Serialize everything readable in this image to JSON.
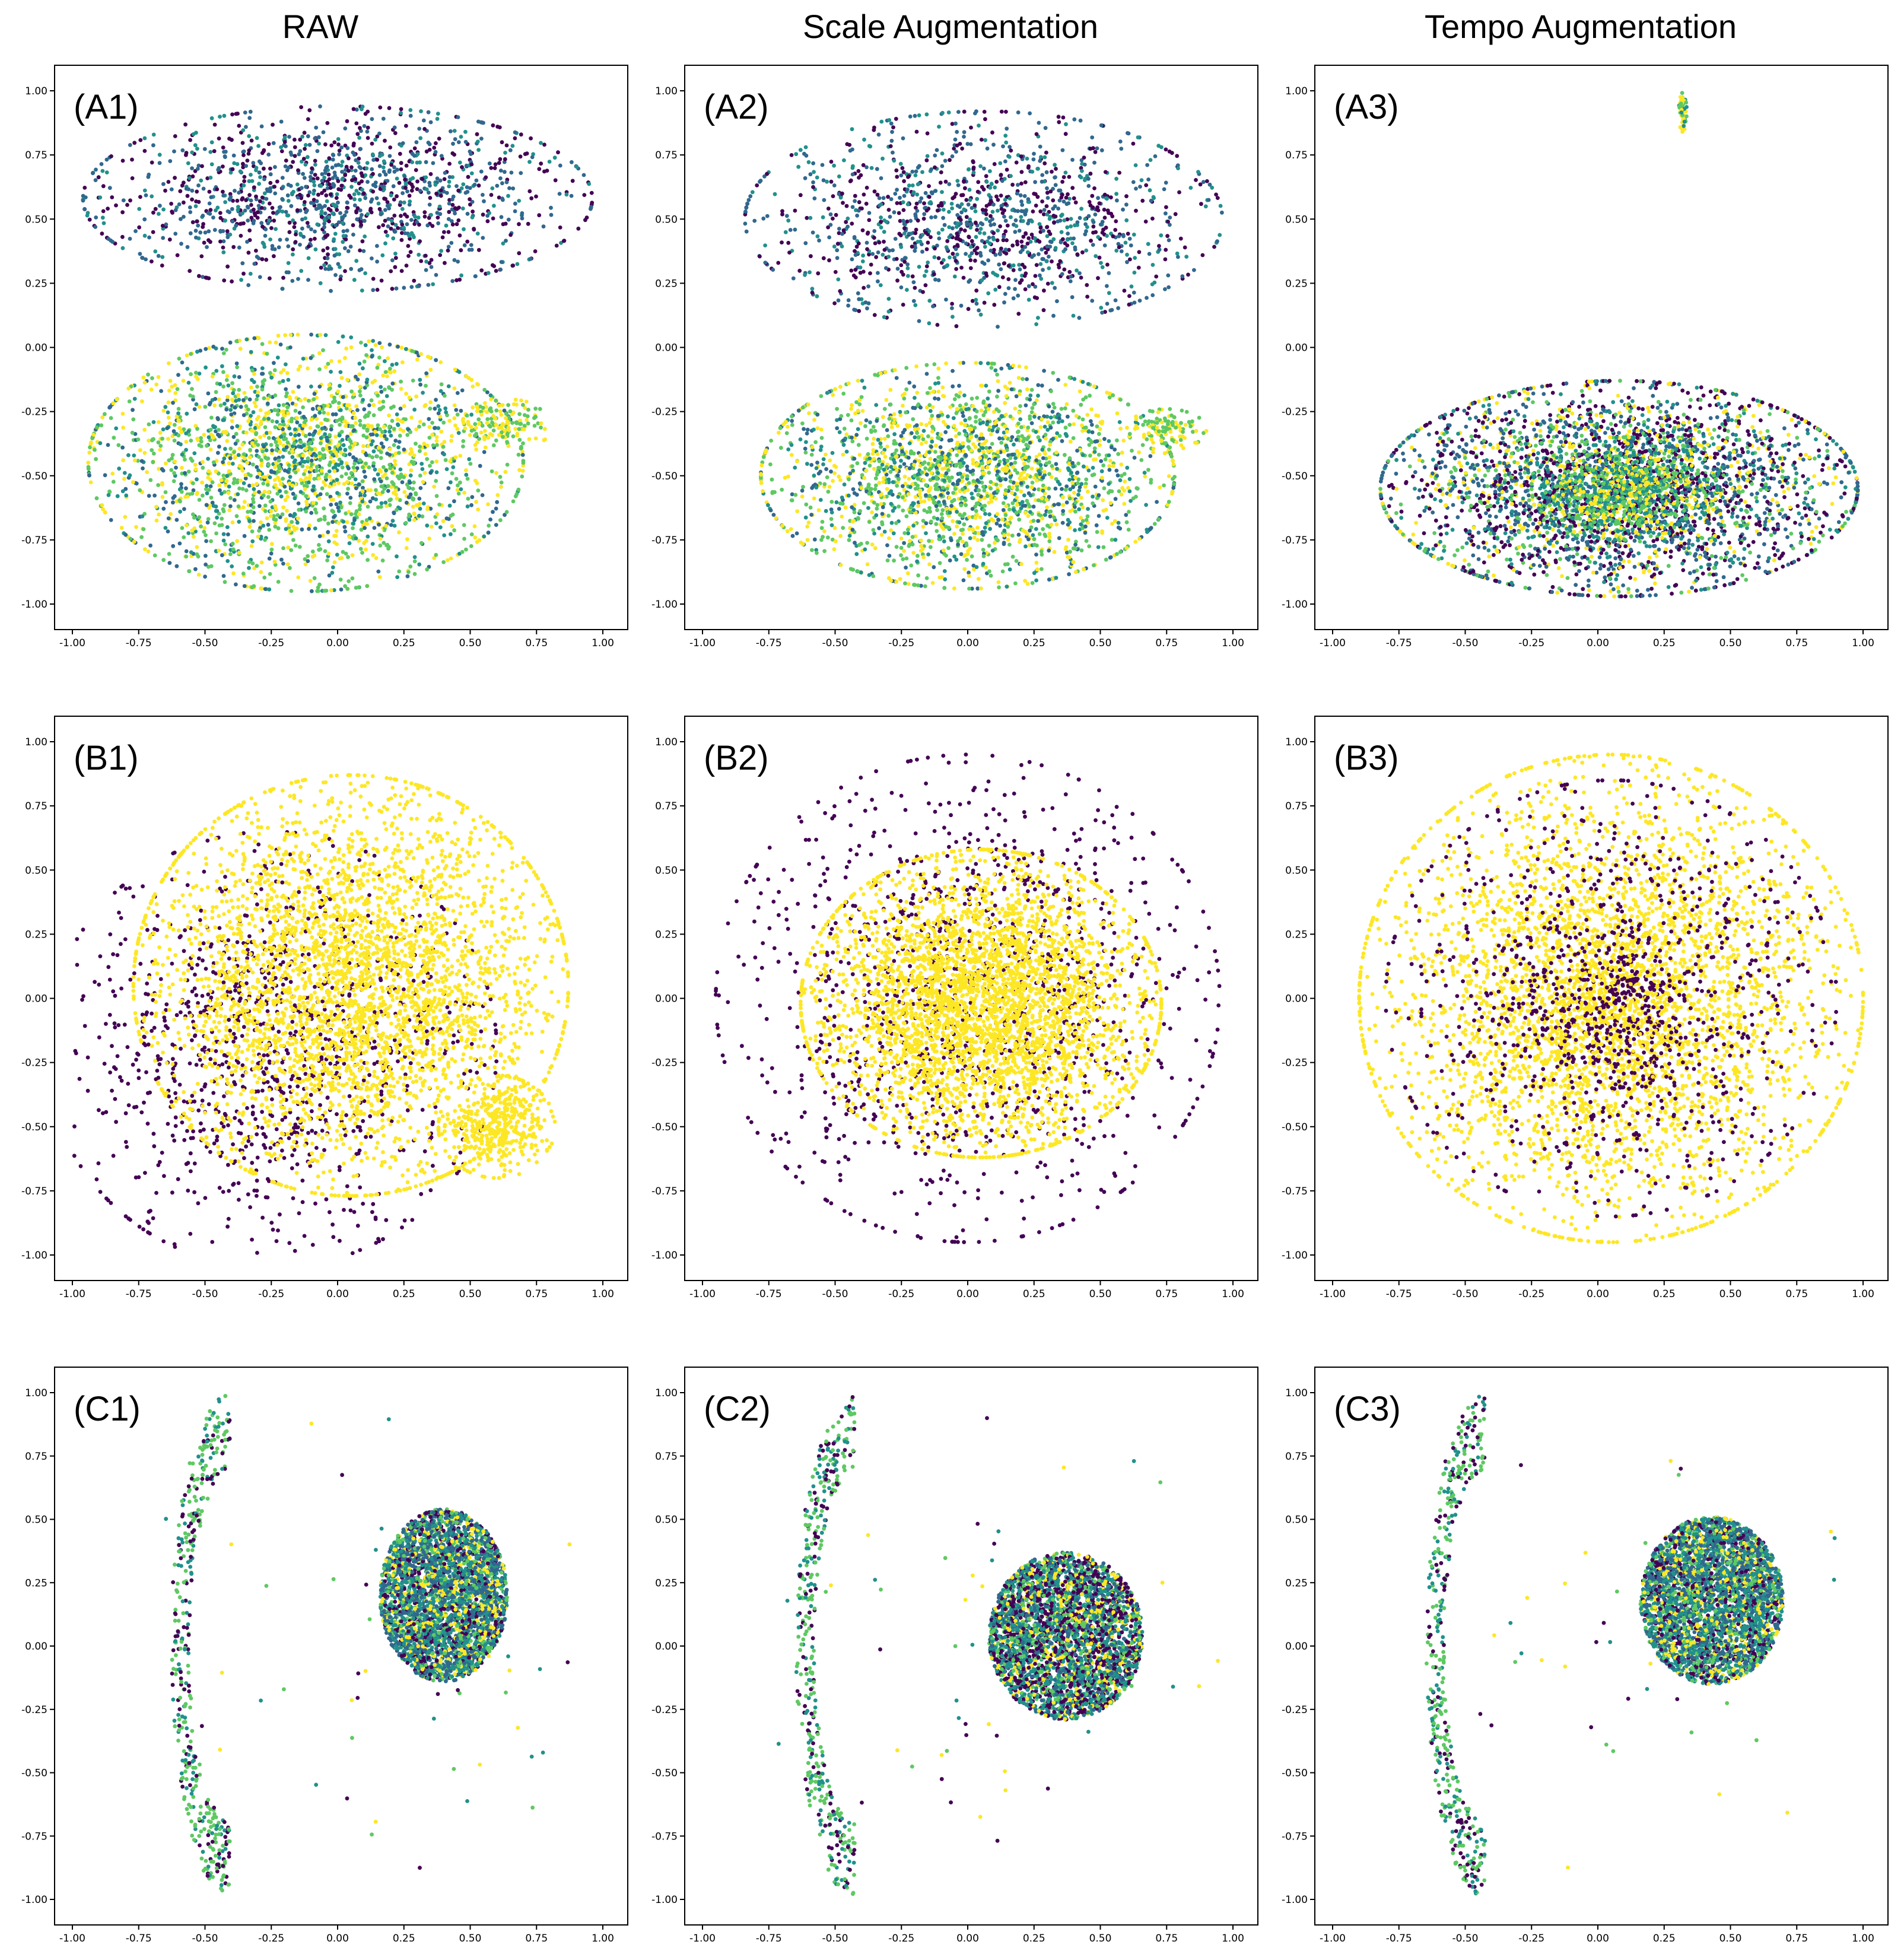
{
  "column_titles": [
    "RAW",
    "Scale Augmentation",
    "Tempo Augmentation"
  ],
  "colors": {
    "viridis": [
      "#440154",
      "#31688e",
      "#21918c",
      "#5ec962",
      "#fde725"
    ],
    "binary": [
      "#440154",
      "#fde725"
    ]
  },
  "chart_data": [
    {
      "type": "scatter",
      "label": "(A1)",
      "xlim": [
        -1,
        1
      ],
      "ylim": [
        -1,
        1
      ],
      "grid": false,
      "xticks": [
        "-1.00",
        "-0.75",
        "-0.50",
        "-0.25",
        "0.00",
        "0.25",
        "0.50",
        "0.75",
        "1.00"
      ],
      "yticks": [
        "1.00",
        "0.75",
        "0.50",
        "0.25",
        "0.00",
        "-0.25",
        "-0.50",
        "-0.75",
        "-1.00"
      ],
      "palette": "viridis",
      "clusters": [
        {
          "cx": 0.0,
          "cy": 0.58,
          "rx": 0.96,
          "ry": 0.36,
          "n": 1400,
          "c": [
            0,
            1,
            0,
            2,
            1
          ],
          "seed": 11
        },
        {
          "cx": -0.12,
          "cy": -0.45,
          "rx": 0.82,
          "ry": 0.5,
          "n": 2300,
          "c": [
            4,
            3,
            2,
            3,
            4,
            1
          ],
          "seed": 12
        },
        {
          "cx": 0.62,
          "cy": -0.3,
          "rx": 0.2,
          "ry": 0.1,
          "n": 140,
          "c": [
            4,
            3
          ],
          "seed": 13
        }
      ]
    },
    {
      "type": "scatter",
      "label": "(A2)",
      "xlim": [
        -1,
        1
      ],
      "ylim": [
        -1,
        1
      ],
      "grid": false,
      "xticks": [
        "-1.00",
        "-0.75",
        "-0.50",
        "-0.25",
        "0.00",
        "0.25",
        "0.50",
        "0.75",
        "1.00"
      ],
      "yticks": [
        "1.00",
        "0.75",
        "0.50",
        "0.25",
        "0.00",
        "-0.25",
        "-0.50",
        "-0.75",
        "-1.00"
      ],
      "palette": "viridis",
      "clusters": [
        {
          "cx": 0.06,
          "cy": 0.5,
          "rx": 0.9,
          "ry": 0.42,
          "n": 1300,
          "c": [
            0,
            1,
            0,
            2,
            1
          ],
          "seed": 21
        },
        {
          "cx": 0.0,
          "cy": -0.5,
          "rx": 0.78,
          "ry": 0.44,
          "n": 2200,
          "c": [
            4,
            3,
            2,
            3,
            4,
            1
          ],
          "seed": 22
        },
        {
          "cx": 0.75,
          "cy": -0.32,
          "rx": 0.15,
          "ry": 0.08,
          "n": 120,
          "c": [
            4,
            3
          ],
          "seed": 23
        }
      ]
    },
    {
      "type": "scatter",
      "label": "(A3)",
      "xlim": [
        -1,
        1
      ],
      "ylim": [
        -1,
        1
      ],
      "grid": false,
      "xticks": [
        "-1.00",
        "-0.75",
        "-0.50",
        "-0.25",
        "0.00",
        "0.25",
        "0.50",
        "0.75",
        "1.00"
      ],
      "yticks": [
        "1.00",
        "0.75",
        "0.50",
        "0.25",
        "0.00",
        "-0.25",
        "-0.50",
        "-0.75",
        "-1.00"
      ],
      "palette": "viridis",
      "clusters": [
        {
          "cx": 0.08,
          "cy": -0.55,
          "rx": 0.9,
          "ry": 0.42,
          "n": 3400,
          "c": [
            0,
            1,
            2,
            3,
            4,
            0,
            1
          ],
          "seed": 31
        },
        {
          "cx": 0.1,
          "cy": -0.55,
          "rx": 0.35,
          "ry": 0.2,
          "n": 700,
          "c": [
            3,
            4,
            2
          ],
          "seed": 32
        },
        {
          "cx": 0.32,
          "cy": 0.92,
          "rx": 0.015,
          "ry": 0.08,
          "n": 60,
          "c": [
            4,
            3,
            2
          ],
          "seed": 33
        }
      ]
    },
    {
      "type": "scatter",
      "label": "(B1)",
      "xlim": [
        -1,
        1
      ],
      "ylim": [
        -1,
        1
      ],
      "grid": false,
      "xticks": [
        "-1.00",
        "-0.75",
        "-0.50",
        "-0.25",
        "0.00",
        "0.25",
        "0.50",
        "0.75",
        "1.00"
      ],
      "yticks": [
        "1.00",
        "0.75",
        "0.50",
        "0.25",
        "0.00",
        "-0.25",
        "-0.50",
        "-0.75",
        "-1.00"
      ],
      "palette": "binary",
      "clusters": [
        {
          "cx": -0.25,
          "cy": -0.2,
          "rx": 0.85,
          "ry": 0.85,
          "n": 1100,
          "c": [
            0
          ],
          "seed": 41
        },
        {
          "cx": 0.05,
          "cy": 0.05,
          "rx": 0.82,
          "ry": 0.82,
          "n": 3600,
          "c": [
            1
          ],
          "seed": 42
        },
        {
          "cx": 0.6,
          "cy": -0.5,
          "rx": 0.22,
          "ry": 0.2,
          "n": 400,
          "c": [
            1
          ],
          "seed": 43
        }
      ]
    },
    {
      "type": "scatter",
      "label": "(B2)",
      "xlim": [
        -1,
        1
      ],
      "ylim": [
        -1,
        1
      ],
      "grid": false,
      "xticks": [
        "-1.00",
        "-0.75",
        "-0.50",
        "-0.25",
        "0.00",
        "0.25",
        "0.50",
        "0.75",
        "1.00"
      ],
      "yticks": [
        "1.00",
        "0.75",
        "0.50",
        "0.25",
        "0.00",
        "-0.25",
        "-0.50",
        "-0.75",
        "-1.00"
      ],
      "palette": "binary",
      "clusters": [
        {
          "cx": 0.0,
          "cy": 0.0,
          "rx": 0.95,
          "ry": 0.95,
          "n": 1200,
          "c": [
            0
          ],
          "seed": 51
        },
        {
          "cx": 0.05,
          "cy": -0.02,
          "rx": 0.68,
          "ry": 0.6,
          "n": 3600,
          "c": [
            1
          ],
          "seed": 52
        }
      ]
    },
    {
      "type": "scatter",
      "label": "(B3)",
      "xlim": [
        -1,
        1
      ],
      "ylim": [
        -1,
        1
      ],
      "grid": false,
      "xticks": [
        "-1.00",
        "-0.75",
        "-0.50",
        "-0.25",
        "0.00",
        "0.25",
        "0.50",
        "0.75",
        "1.00"
      ],
      "yticks": [
        "1.00",
        "0.75",
        "0.50",
        "0.25",
        "0.00",
        "-0.25",
        "-0.50",
        "-0.75",
        "-1.00"
      ],
      "palette": "binary",
      "clusters": [
        {
          "cx": 0.05,
          "cy": 0.0,
          "rx": 0.95,
          "ry": 0.95,
          "n": 3800,
          "c": [
            1
          ],
          "seed": 61
        },
        {
          "cx": 0.05,
          "cy": 0.0,
          "rx": 0.85,
          "ry": 0.85,
          "n": 900,
          "c": [
            0
          ],
          "seed": 62
        },
        {
          "cx": 0.05,
          "cy": -0.05,
          "rx": 0.3,
          "ry": 0.3,
          "n": 400,
          "c": [
            0,
            1
          ],
          "seed": 63
        }
      ]
    },
    {
      "type": "scatter",
      "label": "(C1)",
      "xlim": [
        -1,
        1
      ],
      "ylim": [
        -1,
        1
      ],
      "grid": false,
      "xticks": [
        "-1.00",
        "-0.75",
        "-0.50",
        "-0.25",
        "0.00",
        "0.25",
        "0.50",
        "0.75",
        "1.00"
      ],
      "yticks": [
        "1.00",
        "0.75",
        "0.50",
        "0.25",
        "0.00",
        "-0.25",
        "-0.50",
        "-0.75",
        "-1.00"
      ],
      "palette": "viridis",
      "clusters": [
        {
          "cx": 0.4,
          "cy": 0.2,
          "rx": 0.24,
          "ry": 0.34,
          "n": 3500,
          "c": [
            0,
            1,
            2,
            3,
            4,
            2,
            1
          ],
          "seed": 71,
          "dense": true
        },
        {
          "cx": -0.58,
          "cy": 0.0,
          "rx": 0.38,
          "ry": 0.98,
          "n": 420,
          "c": [
            3,
            0,
            2,
            3
          ],
          "seed": 72,
          "crescent": true
        },
        {
          "cx": 0.1,
          "cy": 0.0,
          "rx": 0.9,
          "ry": 0.9,
          "n": 50,
          "c": [
            3,
            4,
            0,
            2
          ],
          "seed": 73
        }
      ]
    },
    {
      "type": "scatter",
      "label": "(C2)",
      "xlim": [
        -1,
        1
      ],
      "ylim": [
        -1,
        1
      ],
      "grid": false,
      "xticks": [
        "-1.00",
        "-0.75",
        "-0.50",
        "-0.25",
        "0.00",
        "0.25",
        "0.50",
        "0.75",
        "1.00"
      ],
      "yticks": [
        "1.00",
        "0.75",
        "0.50",
        "0.25",
        "0.00",
        "-0.25",
        "-0.50",
        "-0.75",
        "-1.00"
      ],
      "palette": "viridis",
      "clusters": [
        {
          "cx": 0.37,
          "cy": 0.04,
          "rx": 0.29,
          "ry": 0.33,
          "n": 3500,
          "c": [
            0,
            1,
            2,
            3,
            4,
            2,
            0
          ],
          "seed": 81,
          "dense": true
        },
        {
          "cx": -0.6,
          "cy": 0.0,
          "rx": 0.38,
          "ry": 0.98,
          "n": 420,
          "c": [
            3,
            0,
            2,
            3
          ],
          "seed": 82,
          "crescent": true
        },
        {
          "cx": 0.1,
          "cy": 0.0,
          "rx": 0.9,
          "ry": 0.9,
          "n": 50,
          "c": [
            3,
            4,
            0,
            2
          ],
          "seed": 83
        }
      ]
    },
    {
      "type": "scatter",
      "label": "(C3)",
      "xlim": [
        -1,
        1
      ],
      "ylim": [
        -1,
        1
      ],
      "grid": false,
      "xticks": [
        "-1.00",
        "-0.75",
        "-0.50",
        "-0.25",
        "0.00",
        "0.25",
        "0.50",
        "0.75",
        "1.00"
      ],
      "yticks": [
        "1.00",
        "0.75",
        "0.50",
        "0.25",
        "0.00",
        "-0.25",
        "-0.50",
        "-0.75",
        "-1.00"
      ],
      "palette": "viridis",
      "clusters": [
        {
          "cx": 0.43,
          "cy": 0.18,
          "rx": 0.27,
          "ry": 0.33,
          "n": 3500,
          "c": [
            0,
            1,
            2,
            3,
            4,
            2,
            1
          ],
          "seed": 91,
          "dense": true
        },
        {
          "cx": -0.6,
          "cy": 0.0,
          "rx": 0.38,
          "ry": 0.98,
          "n": 420,
          "c": [
            3,
            0,
            2,
            3
          ],
          "seed": 92,
          "crescent": true
        },
        {
          "cx": 0.1,
          "cy": 0.0,
          "rx": 0.9,
          "ry": 0.9,
          "n": 50,
          "c": [
            3,
            4,
            0,
            2
          ],
          "seed": 93
        }
      ]
    }
  ]
}
